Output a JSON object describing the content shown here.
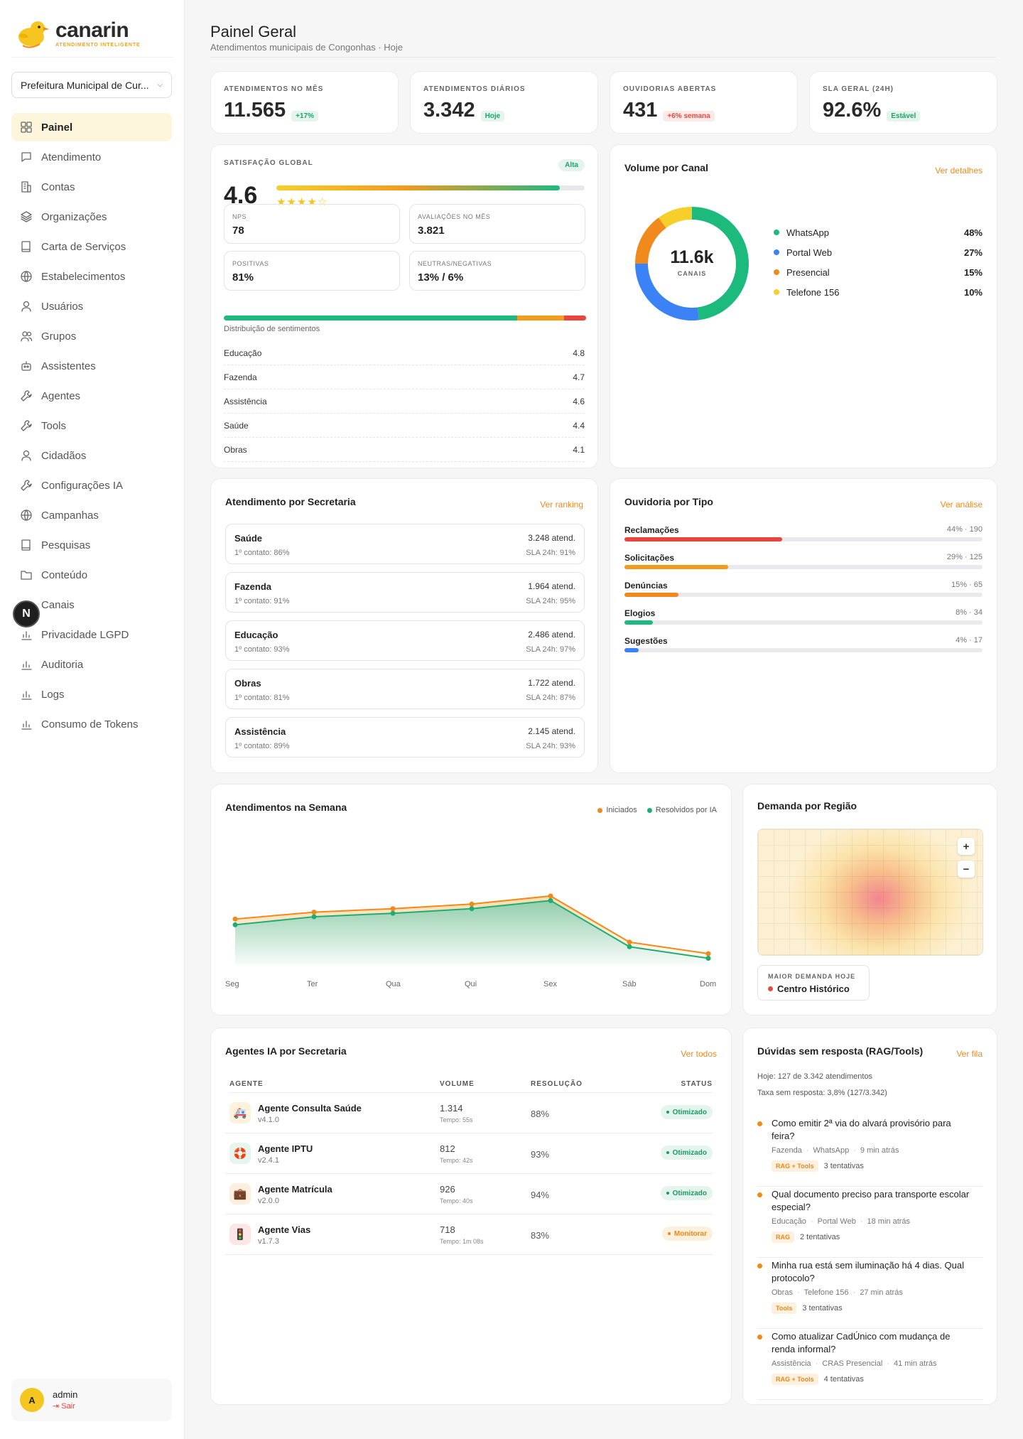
{
  "brand": {
    "name": "canarin",
    "tagline": "ATENDIMENTO INTELIGENTE"
  },
  "org_select": {
    "value": "Prefeitura Municipal de Cur..."
  },
  "nav": [
    {
      "label": "Painel",
      "icon": "grid-icon",
      "active": true
    },
    {
      "label": "Atendimento",
      "icon": "chat-icon"
    },
    {
      "label": "Contas",
      "icon": "building-icon"
    },
    {
      "label": "Organizações",
      "icon": "layers-icon"
    },
    {
      "label": "Carta de Serviços",
      "icon": "book-icon"
    },
    {
      "label": "Estabelecimentos",
      "icon": "globe-icon"
    },
    {
      "label": "Usuários",
      "icon": "user-icon"
    },
    {
      "label": "Grupos",
      "icon": "users-icon"
    },
    {
      "label": "Assistentes",
      "icon": "bot-icon"
    },
    {
      "label": "Agentes",
      "icon": "wrench-icon"
    },
    {
      "label": "Tools",
      "icon": "wrench-icon"
    },
    {
      "label": "Cidadãos",
      "icon": "user-icon"
    },
    {
      "label": "Configurações IA",
      "icon": "wrench-icon"
    },
    {
      "label": "Campanhas",
      "icon": "globe-icon"
    },
    {
      "label": "Pesquisas",
      "icon": "book-icon"
    },
    {
      "label": "Conteúdo",
      "icon": "folder-icon"
    },
    {
      "label": "Canais",
      "icon": "bar-chart-icon"
    },
    {
      "label": "Privacidade LGPD",
      "icon": "bar-chart-icon"
    },
    {
      "label": "Auditoria",
      "icon": "bar-chart-icon"
    },
    {
      "label": "Logs",
      "icon": "bar-chart-icon"
    },
    {
      "label": "Consumo de Tokens",
      "icon": "bar-chart-icon"
    }
  ],
  "floating_badge": "N",
  "user": {
    "initial": "A",
    "name": "admin",
    "logout": "Sair"
  },
  "header": {
    "title": "Painel Geral",
    "subtitle": "Atendimentos municipais de Congonhas · Hoje"
  },
  "kpis": [
    {
      "label": "ATENDIMENTOS NO MÊS",
      "value": "11.565",
      "badge": "+17%",
      "tone": "green"
    },
    {
      "label": "ATENDIMENTOS DIÁRIOS",
      "value": "3.342",
      "badge": "Hoje",
      "tone": "green"
    },
    {
      "label": "OUVIDORIAS ABERTAS",
      "value": "431",
      "badge": "+6% semana",
      "tone": "red"
    },
    {
      "label": "SLA GERAL (24H)",
      "value": "92.6%",
      "badge": "Estável",
      "tone": "green"
    }
  ],
  "satisfaction": {
    "label": "SATISFAÇÃO GLOBAL",
    "badge": "Alta",
    "score": "4.6",
    "score_fraction": 0.92,
    "rating_stars": 4,
    "stats": [
      {
        "label": "NPS",
        "value": "78"
      },
      {
        "label": "AVALIAÇÕES NO MÊS",
        "value": "3.821"
      },
      {
        "label": "POSITIVAS",
        "value": "81%"
      },
      {
        "label": "NEUTRAS/NEGATIVAS",
        "value": "13% / 6%"
      }
    ],
    "distribution": {
      "positive": 81,
      "neutral": 13,
      "negative": 6,
      "colors": [
        "#1dba7e",
        "#f29b1d",
        "#e8453c"
      ]
    },
    "distribution_label": "Distribuição de sentimentos",
    "areas": [
      {
        "name": "Educação",
        "score": "4.8"
      },
      {
        "name": "Fazenda",
        "score": "4.7"
      },
      {
        "name": "Assistência",
        "score": "4.6"
      },
      {
        "name": "Saúde",
        "score": "4.4"
      },
      {
        "name": "Obras",
        "score": "4.1"
      }
    ]
  },
  "channels": {
    "title": "Volume por Canal",
    "link": "Ver detalhes",
    "center_value": "11.6k",
    "center_label": "CANAIS",
    "items": [
      {
        "name": "WhatsApp",
        "pct": "48%",
        "value": 48,
        "color": "#1dba7e"
      },
      {
        "name": "Portal Web",
        "pct": "27%",
        "value": 27,
        "color": "#3b82f6"
      },
      {
        "name": "Presencial",
        "pct": "15%",
        "value": 15,
        "color": "#f08a1c"
      },
      {
        "name": "Telefone 156",
        "pct": "10%",
        "value": 10,
        "color": "#f6cf2a"
      }
    ]
  },
  "secretarias": {
    "title": "Atendimento por Secretaria",
    "link": "Ver ranking",
    "items": [
      {
        "name": "Saúde",
        "first": "1º contato: 86%",
        "count": "3.248 atend.",
        "sla": "SLA 24h: 91%"
      },
      {
        "name": "Fazenda",
        "first": "1º contato: 91%",
        "count": "1.964 atend.",
        "sla": "SLA 24h: 95%"
      },
      {
        "name": "Educação",
        "first": "1º contato: 93%",
        "count": "2.486 atend.",
        "sla": "SLA 24h: 97%"
      },
      {
        "name": "Obras",
        "first": "1º contato: 81%",
        "count": "1.722 atend.",
        "sla": "SLA 24h: 87%"
      },
      {
        "name": "Assistência",
        "first": "1º contato: 89%",
        "count": "2.145 atend.",
        "sla": "SLA 24h: 93%"
      }
    ]
  },
  "ouvidoria": {
    "title": "Ouvidoria por Tipo",
    "link": "Ver análise",
    "items": [
      {
        "name": "Reclamações",
        "value": "44% · 190",
        "pct": 44,
        "color": "#e8453c"
      },
      {
        "name": "Solicitações",
        "value": "29% · 125",
        "pct": 29,
        "color": "#f29b1d"
      },
      {
        "name": "Denúncias",
        "value": "15% · 65",
        "pct": 15,
        "color": "#f08a1c"
      },
      {
        "name": "Elogios",
        "value": "8% · 34",
        "pct": 8,
        "color": "#1dba7e"
      },
      {
        "name": "Sugestões",
        "value": "4% · 17",
        "pct": 4,
        "color": "#3b82f6"
      }
    ]
  },
  "chart_data": {
    "type": "line",
    "title": "Atendimentos na Semana",
    "categories": [
      "Seg",
      "Ter",
      "Qua",
      "Qui",
      "Sex",
      "Sáb",
      "Dom"
    ],
    "series": [
      {
        "name": "Iniciados",
        "color": "#f08a1c",
        "values": [
          0.62,
          0.68,
          0.71,
          0.75,
          0.82,
          0.42,
          0.32
        ]
      },
      {
        "name": "Resolvidos por IA",
        "color": "#1dae76",
        "values": [
          0.57,
          0.64,
          0.67,
          0.71,
          0.78,
          0.38,
          0.28
        ]
      }
    ],
    "ylim": [
      0,
      1
    ]
  },
  "region": {
    "title": "Demanda por Região",
    "zoom_in": "+",
    "zoom_out": "−",
    "label": "MAIOR DEMANDA HOJE",
    "value": "Centro Histórico"
  },
  "agents": {
    "title": "Agentes IA por Secretaria",
    "link": "Ver todos",
    "columns": [
      "AGENTE",
      "VOLUME",
      "RESOLUÇÃO",
      "STATUS"
    ],
    "rows": [
      {
        "name": "Agente Consulta Saúde",
        "version": "v4.1.0",
        "volume": "1.314",
        "tempo": "Tempo: 55s",
        "resolution": "88%",
        "status": "Otimizado",
        "tone": "ok",
        "icon": "stethoscope-icon",
        "glyph": "🚑",
        "icon_bg": "#fdf3dd"
      },
      {
        "name": "Agente IPTU",
        "version": "v2.4.1",
        "volume": "812",
        "tempo": "Tempo: 42s",
        "resolution": "93%",
        "status": "Otimizado",
        "tone": "ok",
        "icon": "lifebuoy-icon",
        "glyph": "🛟",
        "icon_bg": "#e6f6ee"
      },
      {
        "name": "Agente Matrícula",
        "version": "v2.0.0",
        "volume": "926",
        "tempo": "Tempo: 40s",
        "resolution": "94%",
        "status": "Otimizado",
        "tone": "ok",
        "icon": "briefcase-icon",
        "glyph": "💼",
        "icon_bg": "#fdeedd"
      },
      {
        "name": "Agente Vias",
        "version": "v1.7.3",
        "volume": "718",
        "tempo": "Tempo: 1m 08s",
        "resolution": "83%",
        "status": "Monitorar",
        "tone": "warn",
        "icon": "traffic-icon",
        "glyph": "🚦",
        "icon_bg": "#fde6e6"
      }
    ]
  },
  "questions": {
    "title": "Dúvidas sem resposta (RAG/Tools)",
    "link": "Ver fila",
    "summary1": "Hoje: 127 de 3.342 atendimentos",
    "summary2": "Taxa sem resposta: 3,8% (127/3.342)",
    "items": [
      {
        "text": "Como emitir 2ª via do alvará provisório para feira?",
        "area": "Fazenda",
        "channel": "WhatsApp",
        "time": "9 min atrás",
        "tag": "RAG + Tools",
        "attempts": "3 tentativas"
      },
      {
        "text": "Qual documento preciso para transporte escolar especial?",
        "area": "Educação",
        "channel": "Portal Web",
        "time": "18 min atrás",
        "tag": "RAG",
        "attempts": "2 tentativas"
      },
      {
        "text": "Minha rua está sem iluminação há 4 dias. Qual protocolo?",
        "area": "Obras",
        "channel": "Telefone 156",
        "time": "27 min atrás",
        "tag": "Tools",
        "attempts": "3 tentativas"
      },
      {
        "text": "Como atualizar CadÚnico com mudança de renda informal?",
        "area": "Assistência",
        "channel": "CRAS Presencial",
        "time": "41 min atrás",
        "tag": "RAG + Tools",
        "attempts": "4 tentativas"
      }
    ]
  }
}
